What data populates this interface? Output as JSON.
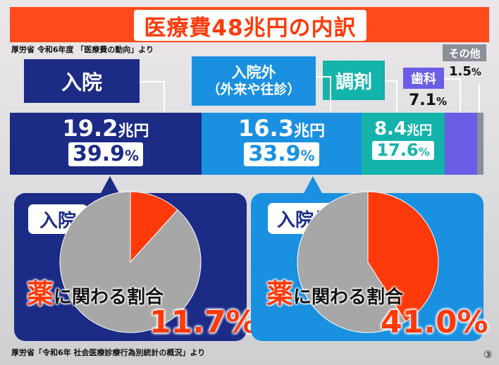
{
  "title": "医療費48兆円の内訳",
  "source_top": "厚労省 令和6年度 「医療費の動向」より",
  "source_bottom": "厚労省「令和6年 社会医療診療行為別統計の概況」より",
  "page_number": "③",
  "colors": {
    "inpatient": "#1b2b86",
    "outpatient": "#1a90e0",
    "pharmacy": "#14b3ac",
    "dental": "#6a5de6",
    "other": "#8a8f98",
    "accent": "#ff3a0a",
    "pie_gray": "#a7a7a7"
  },
  "chart_data": [
    {
      "type": "bar",
      "title": "医療費48兆円の内訳",
      "categories": [
        "入院",
        "入院外（外来や往診）",
        "調剤",
        "歯科",
        "その他"
      ],
      "series": [
        {
          "values": [
            39.9,
            33.9,
            17.6,
            7.1,
            1.5
          ]
        }
      ],
      "amounts": [
        "19.2",
        "16.3",
        "8.4",
        null,
        null
      ],
      "amount_unit": "兆円",
      "percent_unit": "%",
      "labels": {
        "inpatient_label": "入院",
        "outpatient_label_1": "入院外",
        "outpatient_label_2": "（外来や往診）",
        "pharmacy_label": "調剤",
        "dental_label": "歯科",
        "other_label": "その他",
        "inpatient_amount": "19.2",
        "outpatient_amount": "16.3",
        "pharmacy_amount": "8.4",
        "amount_unit": "兆円",
        "inpatient_pct": "39.9",
        "outpatient_pct": "33.9",
        "pharmacy_pct": "17.6",
        "dental_pct": "7.1",
        "other_pct": "1.5",
        "pct_unit": "%"
      }
    },
    {
      "type": "pie",
      "tag": "入院",
      "caption_kanji": "薬",
      "caption_rest": "に関わる割合",
      "value_label": "11.7%",
      "slices": [
        {
          "label": "薬に関わる割合",
          "value": 11.7
        },
        {
          "label": "",
          "value": 88.3
        }
      ]
    },
    {
      "type": "pie",
      "tag": "入院外",
      "caption_kanji": "薬",
      "caption_rest": "に関わる割合",
      "value_label": "41.0%",
      "slices": [
        {
          "label": "薬に関わる割合",
          "value": 41.0
        },
        {
          "label": "",
          "value": 59.0
        }
      ]
    }
  ]
}
